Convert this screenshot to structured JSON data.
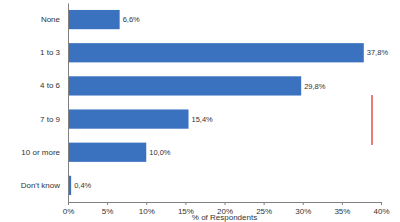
{
  "chart_data": {
    "type": "bar",
    "orientation": "horizontal",
    "categories": [
      "None",
      "1 to 3",
      "4 to 6",
      "7 to 9",
      "10 or more",
      "Don't know"
    ],
    "values": [
      6.6,
      37.8,
      29.8,
      15.4,
      10.0,
      0.4
    ],
    "value_labels": [
      "6,6%",
      "37,8%",
      "29,8%",
      "15,4%",
      "10,0%",
      "0,4%"
    ],
    "color": "#3b72c0",
    "x_label": "% of Respondents",
    "xlim": [
      0,
      40
    ],
    "xticks": [
      {
        "value": 0,
        "label": "0%"
      },
      {
        "value": 5,
        "label": "5%"
      },
      {
        "value": 10,
        "label": "10%"
      },
      {
        "value": 15,
        "label": "15%"
      },
      {
        "value": 20,
        "label": "20%"
      },
      {
        "value": 25,
        "label": "25%"
      },
      {
        "value": 30,
        "label": "30%"
      },
      {
        "value": 35,
        "label": "35%"
      },
      {
        "value": 40,
        "label": "40%"
      }
    ],
    "grid": false,
    "data_labels": true
  }
}
